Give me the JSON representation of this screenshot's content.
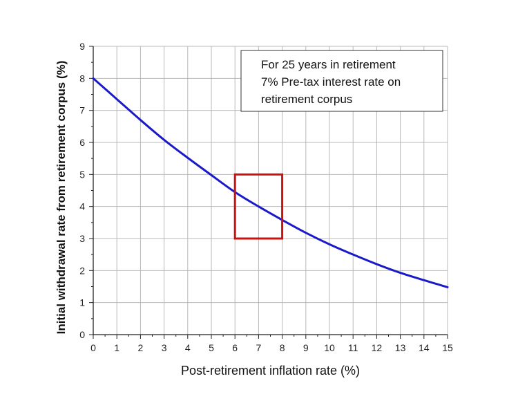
{
  "chart_data": {
    "type": "line",
    "xlabel": "Post-retirement inflation rate (%)",
    "ylabel": "Initial withdrawal rate from retirement corpus (%)",
    "xlim": [
      0,
      15
    ],
    "ylim": [
      0,
      9
    ],
    "x_ticks": [
      0,
      1,
      2,
      3,
      4,
      5,
      6,
      7,
      8,
      9,
      10,
      11,
      12,
      13,
      14,
      15
    ],
    "y_ticks": [
      0,
      1,
      2,
      3,
      4,
      5,
      6,
      7,
      8,
      9
    ],
    "grid": true,
    "series": [
      {
        "color": "#1a1ac8",
        "x": [
          0,
          1,
          2,
          3,
          4,
          5,
          6,
          7,
          8,
          9,
          10,
          11,
          12,
          13,
          14,
          15
        ],
        "y": [
          8.0,
          7.35,
          6.7,
          6.08,
          5.52,
          4.98,
          4.45,
          4.0,
          3.58,
          3.18,
          2.82,
          2.5,
          2.2,
          1.93,
          1.7,
          1.48
        ]
      }
    ],
    "annotations": {
      "lines": [
        "For 25 years in retirement",
        "7% Pre-tax interest rate on",
        "retirement corpus"
      ],
      "position": "top-right"
    },
    "highlight_box": {
      "x_range": [
        6,
        8
      ],
      "y_range": [
        3,
        5
      ],
      "color": "#cc1111"
    }
  }
}
